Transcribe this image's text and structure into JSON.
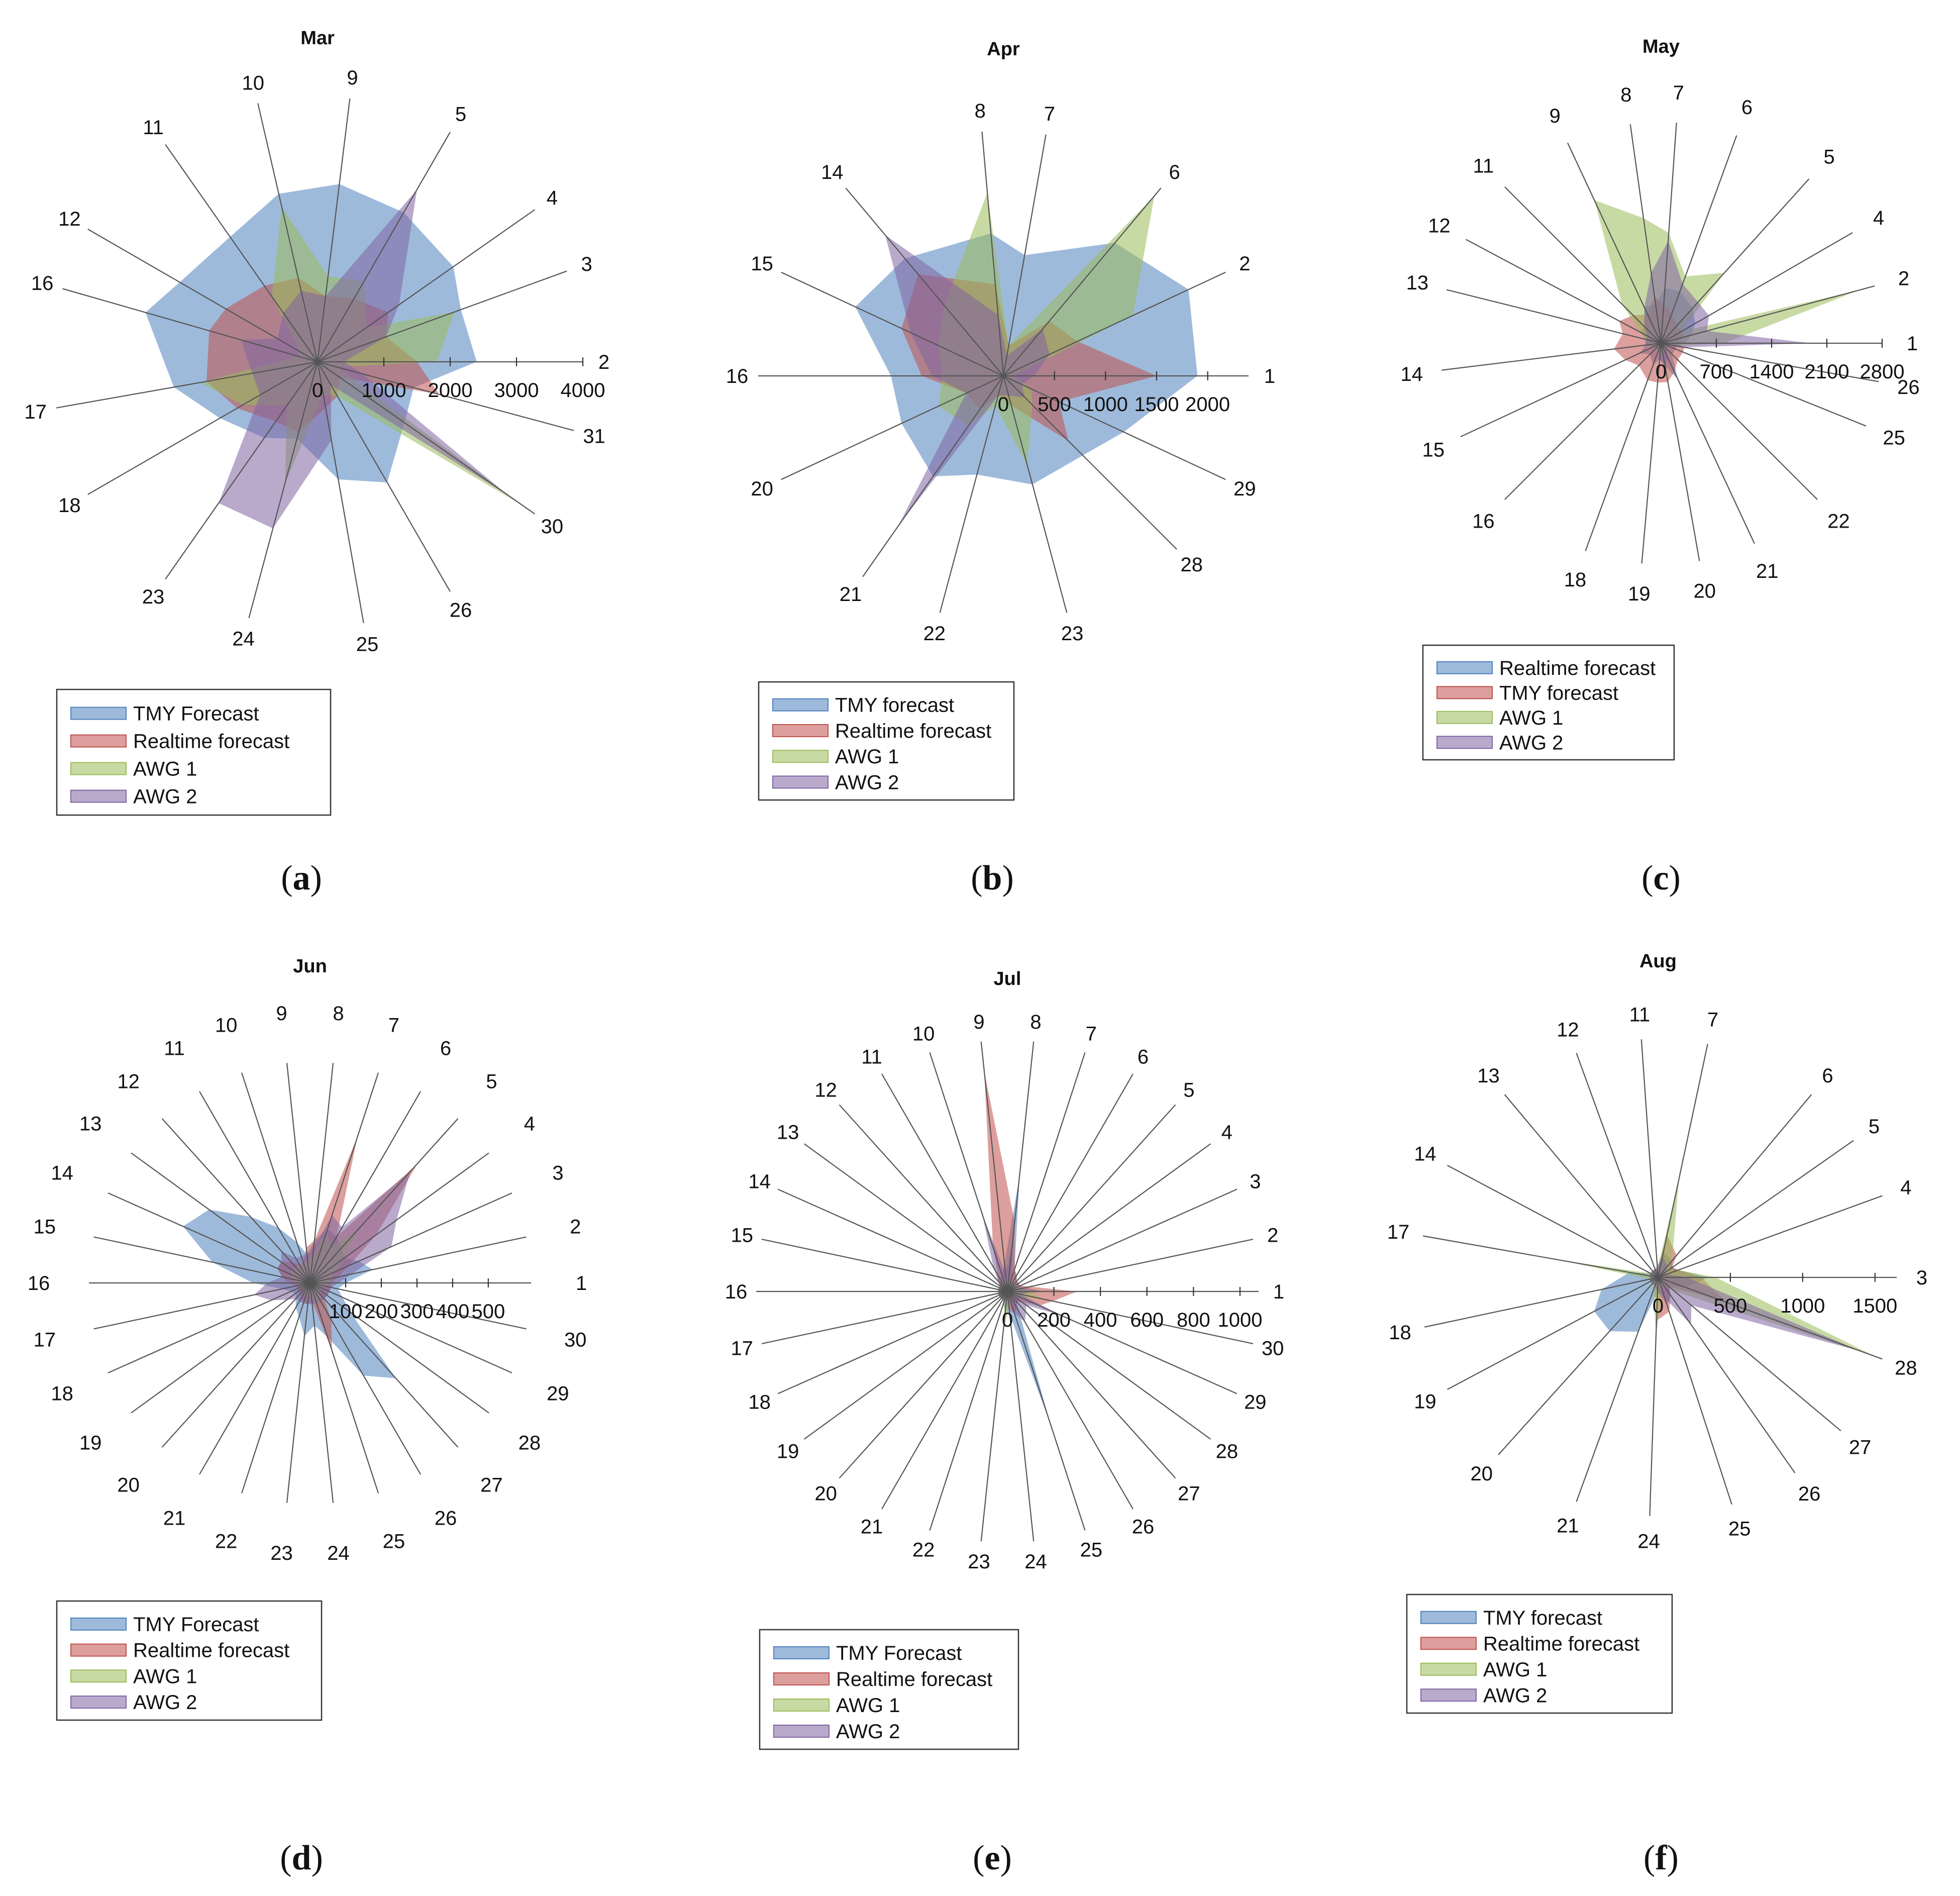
{
  "charts": [
    {
      "panel": "a",
      "caption_open": "(",
      "caption_letter": "a",
      "caption_close": ")",
      "chart_data": {
        "type": "radar",
        "title": "Mar",
        "days": [
          "2",
          "3",
          "4",
          "5",
          "9",
          "10",
          "11",
          "12",
          "16",
          "17",
          "18",
          "23",
          "24",
          "25",
          "26",
          "30",
          "31"
        ],
        "rmax": 4000,
        "ticks": [
          0,
          1000,
          2000,
          3000,
          4000
        ],
        "tick_labels": [
          "0",
          "1000",
          "2000",
          "3000",
          "4000"
        ],
        "legend": [
          "TMY Forecast",
          "Realtime forecast",
          "AWG 1",
          "AWG 2"
        ],
        "series": [
          {
            "name": "TMY Forecast",
            "color": "#4F81BD",
            "values": [
              2400,
              2300,
              2500,
              2600,
              2700,
              2600,
              2300,
              2400,
              2700,
              2200,
              1700,
              1400,
              1200,
              1800,
              2100,
              1600,
              1500
            ]
          },
          {
            "name": "Realtime forecast",
            "color": "#C0504D",
            "values": [
              1500,
              1100,
              1300,
              1100,
              1000,
              1300,
              1400,
              1600,
              1700,
              1700,
              1400,
              1100,
              1100,
              700,
              600,
              400,
              1900
            ]
          },
          {
            "name": "AWG 1",
            "color": "#9BBB59",
            "values": [
              1800,
              2200,
              900,
              1400,
              1300,
              2400,
              1200,
              300,
              300,
              1800,
              1300,
              800,
              1900,
              500,
              600,
              3800,
              300
            ]
          },
          {
            "name": "AWG 2",
            "color": "#8064A2",
            "values": [
              400,
              1100,
              1500,
              3000,
              1000,
              1100,
              900,
              700,
              1200,
              1000,
              1000,
              2600,
              2600,
              1200,
              400,
              3500,
              700
            ]
          }
        ]
      }
    },
    {
      "panel": "b",
      "caption_open": "(",
      "caption_letter": "b",
      "caption_close": ")",
      "chart_data": {
        "type": "radar",
        "title": "Apr",
        "days": [
          "1",
          "2",
          "6",
          "7",
          "8",
          "14",
          "15",
          "16",
          "20",
          "21",
          "22",
          "23",
          "28",
          "29"
        ],
        "rmax": 2400,
        "ticks": [
          0,
          500,
          1000,
          1500,
          2000
        ],
        "tick_labels": [
          "0",
          "500",
          "1000",
          "1500",
          "2000"
        ],
        "legend": [
          "TMY forecast",
          "Realtime forecast",
          "AWG 1",
          "AWG 2"
        ],
        "series": [
          {
            "name": "TMY forecast",
            "color": "#4F81BD",
            "values": [
              1900,
              2000,
              1700,
              1200,
              1400,
              1500,
              1600,
              1100,
              1100,
              1200,
              1000,
              1100,
              1100,
              1300
            ]
          },
          {
            "name": "Realtime forecast",
            "color": "#C0504D",
            "values": [
              1500,
              800,
              700,
              300,
              900,
              1300,
              1100,
              800,
              400,
              400,
              200,
              300,
              900,
              600
            ]
          },
          {
            "name": "AWG 1",
            "color": "#9BBB59",
            "values": [
              100,
              1400,
              2300,
              300,
              1800,
              900,
              700,
              600,
              700,
              600,
              300,
              900,
              400,
              300
            ]
          },
          {
            "name": "AWG 2",
            "color": "#8064A2",
            "values": [
              300,
              500,
              600,
              200,
              600,
              1800,
              1000,
              700,
              400,
              1800,
              200,
              200,
              300,
              200
            ]
          }
        ]
      }
    },
    {
      "panel": "c",
      "caption_open": "(",
      "caption_letter": "c",
      "caption_close": ")",
      "chart_data": {
        "type": "radar",
        "title": "May",
        "days": [
          "1",
          "2",
          "4",
          "5",
          "6",
          "7",
          "8",
          "9",
          "11",
          "12",
          "13",
          "14",
          "15",
          "16",
          "18",
          "19",
          "20",
          "21",
          "22",
          "25",
          "26"
        ],
        "rmax": 2800,
        "ticks": [
          0,
          700,
          1400,
          2100,
          2800
        ],
        "tick_labels": [
          "0",
          "700",
          "1400",
          "2100",
          "2800"
        ],
        "legend": [
          "Realtime forecast",
          "TMY forecast",
          "AWG 1",
          "AWG 2"
        ],
        "series": [
          {
            "name": "Realtime forecast",
            "color": "#4F81BD",
            "values": [
              300,
              400,
              500,
              600,
              700,
              700,
              500,
              500,
              300,
              300,
              200,
              200,
              300,
              200,
              300,
              200,
              300,
              500,
              200,
              200,
              200
            ]
          },
          {
            "name": "TMY forecast",
            "color": "#C0504D",
            "values": [
              200,
              300,
              300,
              300,
              400,
              500,
              600,
              400,
              500,
              600,
              500,
              600,
              500,
              400,
              500,
              500,
              500,
              400,
              300,
              300,
              300
            ]
          },
          {
            "name": "AWG 1",
            "color": "#9BBB59",
            "values": [
              800,
              2600,
              300,
              1200,
              900,
              1400,
              1600,
              2000,
              700,
              300,
              200,
              200,
              100,
              100,
              100,
              100,
              200,
              100,
              100,
              100,
              200
            ]
          },
          {
            "name": "AWG 2",
            "color": "#8064A2",
            "values": [
              1900,
              600,
              700,
              700,
              800,
              1300,
              900,
              500,
              300,
              200,
              200,
              200,
              100,
              100,
              100,
              200,
              300,
              200,
              100,
              100,
              300
            ]
          }
        ]
      }
    },
    {
      "panel": "d",
      "caption_open": "(",
      "caption_letter": "d",
      "caption_close": ")",
      "chart_data": {
        "type": "radar",
        "title": "Jun",
        "days": [
          "1",
          "2",
          "3",
          "4",
          "5",
          "6",
          "7",
          "8",
          "9",
          "10",
          "11",
          "12",
          "13",
          "14",
          "15",
          "16",
          "17",
          "18",
          "19",
          "20",
          "21",
          "22",
          "23",
          "24",
          "25",
          "26",
          "27",
          "28",
          "29",
          "30"
        ],
        "rmax": 620,
        "ticks": [
          0,
          100,
          200,
          300,
          400,
          500
        ],
        "tick_labels": [
          "",
          "100",
          "200",
          "300",
          "400",
          "500"
        ],
        "legend": [
          "TMY Forecast",
          "Realtime forecast",
          "AWG 1",
          "AWG 2"
        ],
        "series": [
          {
            "name": "TMY Forecast",
            "color": "#4F81BD",
            "values": [
              100,
              180,
              150,
              120,
              130,
              150,
              160,
              120,
              80,
              120,
              180,
              250,
              350,
              390,
              280,
              160,
              80,
              60,
              50,
              60,
              80,
              100,
              150,
              120,
              160,
              300,
              360,
              140,
              100,
              80
            ]
          },
          {
            "name": "Realtime forecast",
            "color": "#C0504D",
            "values": [
              60,
              80,
              120,
              230,
              450,
              150,
              430,
              120,
              100,
              60,
              60,
              80,
              100,
              100,
              80,
              60,
              40,
              40,
              40,
              40,
              50,
              60,
              60,
              50,
              200,
              120,
              60,
              60,
              60,
              60
            ]
          },
          {
            "name": "AWG 1",
            "color": "#9BBB59",
            "values": [
              60,
              60,
              80,
              120,
              200,
              120,
              150,
              80,
              60,
              60,
              60,
              60,
              60,
              60,
              50,
              40,
              30,
              30,
              30,
              30,
              30,
              40,
              40,
              40,
              60,
              60,
              40,
              40,
              40,
              40
            ]
          },
          {
            "name": "AWG 2",
            "color": "#8064A2",
            "values": [
              80,
              120,
              250,
              300,
              420,
              180,
              200,
              100,
              80,
              80,
              80,
              120,
              100,
              100,
              80,
              120,
              160,
              120,
              80,
              60,
              60,
              60,
              60,
              60,
              60,
              60,
              60,
              60,
              60,
              60
            ]
          }
        ]
      }
    },
    {
      "panel": "e",
      "caption_open": "(",
      "caption_letter": "e",
      "caption_close": ")",
      "chart_data": {
        "type": "radar",
        "title": "Jul",
        "days": [
          "1",
          "2",
          "3",
          "4",
          "5",
          "6",
          "7",
          "8",
          "9",
          "10",
          "11",
          "12",
          "13",
          "14",
          "15",
          "16",
          "17",
          "18",
          "19",
          "20",
          "21",
          "22",
          "23",
          "24",
          "25",
          "26",
          "27",
          "28",
          "29",
          "30"
        ],
        "rmax": 1080,
        "ticks": [
          0,
          200,
          400,
          600,
          800,
          1000
        ],
        "tick_labels": [
          "0",
          "200",
          "400",
          "600",
          "800",
          "1000"
        ],
        "legend": [
          "TMY Forecast",
          "Realtime forecast",
          "AWG 1",
          "AWG 2"
        ],
        "series": [
          {
            "name": "TMY Forecast",
            "color": "#4F81BD",
            "values": [
              150,
              80,
              60,
              60,
              60,
              80,
              100,
              500,
              120,
              80,
              60,
              50,
              40,
              40,
              40,
              40,
              40,
              40,
              40,
              40,
              40,
              60,
              80,
              100,
              600,
              100,
              60,
              60,
              60,
              60
            ]
          },
          {
            "name": "Realtime forecast",
            "color": "#C0504D",
            "values": [
              300,
              100,
              60,
              60,
              60,
              80,
              100,
              300,
              950,
              200,
              80,
              60,
              40,
              40,
              40,
              40,
              40,
              40,
              40,
              40,
              40,
              40,
              60,
              80,
              100,
              80,
              60,
              80,
              150,
              200
            ]
          },
          {
            "name": "AWG 1",
            "color": "#9BBB59",
            "values": [
              100,
              60,
              40,
              40,
              40,
              40,
              40,
              60,
              60,
              40,
              40,
              40,
              40,
              40,
              40,
              40,
              40,
              40,
              40,
              40,
              40,
              40,
              200,
              60,
              40,
              40,
              40,
              40,
              60,
              150
            ]
          },
          {
            "name": "AWG 2",
            "color": "#8064A2",
            "values": [
              100,
              60,
              40,
              40,
              40,
              40,
              60,
              200,
              80,
              350,
              120,
              60,
              40,
              40,
              40,
              40,
              40,
              40,
              40,
              40,
              40,
              40,
              40,
              40,
              100,
              150,
              120,
              100,
              250,
              60
            ]
          }
        ]
      }
    },
    {
      "panel": "f",
      "caption_open": "(",
      "caption_letter": "f",
      "caption_close": ")",
      "chart_data": {
        "type": "radar",
        "title": "Aug",
        "days": [
          "3",
          "4",
          "5",
          "6",
          "7",
          "11",
          "12",
          "13",
          "14",
          "17",
          "18",
          "19",
          "20",
          "21",
          "24",
          "25",
          "26",
          "27",
          "28"
        ],
        "rmax": 1650,
        "ticks": [
          0,
          500,
          1000,
          1500
        ],
        "tick_labels": [
          "0",
          "500",
          "1000",
          "1500"
        ],
        "legend": [
          "TMY forecast",
          "Realtime forecast",
          "AWG 1",
          "AWG 2"
        ],
        "series": [
          {
            "name": "TMY forecast",
            "color": "#4F81BD",
            "values": [
              350,
              150,
              120,
              150,
              180,
              80,
              60,
              60,
              60,
              200,
              400,
              500,
              500,
              400,
              100,
              200,
              150,
              100,
              200
            ]
          },
          {
            "name": "Realtime forecast",
            "color": "#C0504D",
            "values": [
              300,
              150,
              120,
              200,
              300,
              60,
              60,
              60,
              60,
              60,
              60,
              60,
              60,
              60,
              300,
              250,
              150,
              100,
              500
            ]
          },
          {
            "name": "AWG 1",
            "color": "#9BBB59",
            "values": [
              400,
              150,
              100,
              150,
              700,
              60,
              60,
              60,
              60,
              700,
              60,
              60,
              60,
              100,
              400,
              100,
              60,
              150,
              1600
            ]
          },
          {
            "name": "AWG 2",
            "color": "#8064A2",
            "values": [
              200,
              60,
              60,
              100,
              150,
              60,
              60,
              60,
              60,
              60,
              60,
              60,
              60,
              60,
              100,
              150,
              400,
              300,
              1500
            ]
          }
        ]
      }
    }
  ]
}
